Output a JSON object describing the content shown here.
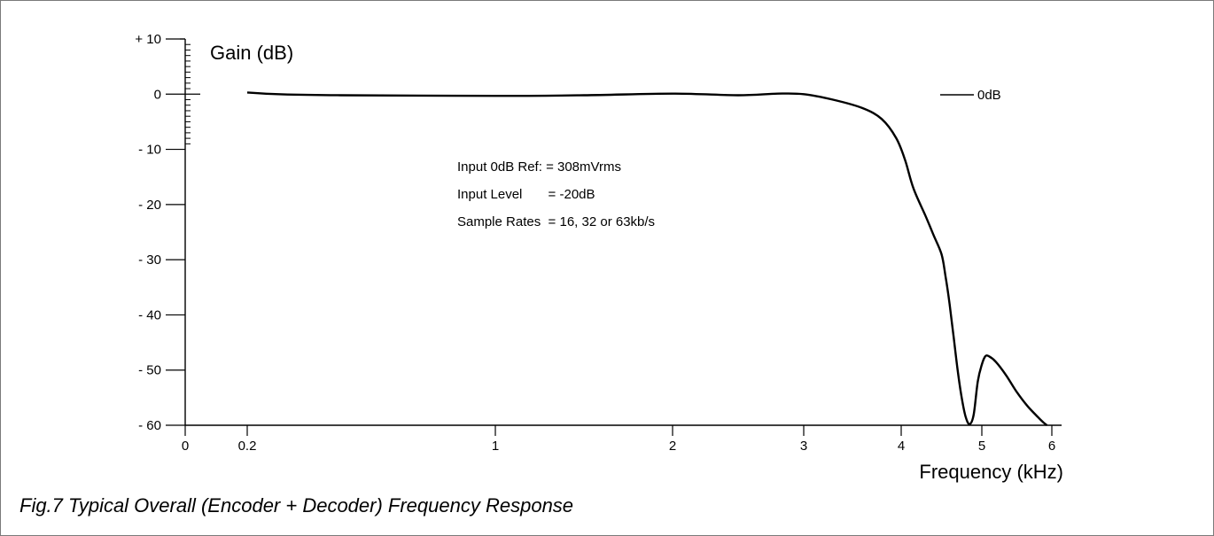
{
  "caption": "Fig.7 Typical Overall (Encoder + Decoder) Frequency Response",
  "chart_data": {
    "type": "line",
    "ylabel": "Gain (dB)",
    "xlabel": "Frequency (kHz)",
    "ylim": [
      -60,
      10
    ],
    "yticks": [
      10,
      0,
      -10,
      -20,
      -30,
      -40,
      -50,
      -60
    ],
    "ytick_labels": [
      "+ 10",
      "0",
      "- 10",
      "- 20",
      "- 30",
      "- 40",
      "- 50",
      "- 60"
    ],
    "xticks": [
      0,
      0.2,
      1,
      2,
      3,
      4,
      5,
      6
    ],
    "xtick_labels": [
      "0",
      "0.2",
      "1",
      "2",
      "3",
      "4",
      "5",
      "6"
    ],
    "legend_position": "top-right",
    "grid": false,
    "annotations": [
      "Input 0dB Ref: = 308mVrms",
      "Input Level       = -20dB",
      "Sample Rates  = 16, 32 or 63kb/s"
    ],
    "series": [
      {
        "name": "0dB",
        "color": "#000000",
        "x": [
          0.2,
          0.3,
          0.5,
          1.0,
          1.5,
          2.0,
          2.5,
          2.8,
          3.0,
          3.3,
          3.6,
          3.8,
          3.95,
          4.05,
          4.15,
          4.3,
          4.4,
          4.5,
          4.55,
          4.6,
          4.65,
          4.7,
          4.75,
          4.8,
          4.85,
          4.9,
          4.95,
          5.0,
          5.05,
          5.1,
          5.2,
          5.35,
          5.5,
          5.65,
          5.8,
          5.88,
          5.93
        ],
        "y": [
          0.3,
          0,
          -0.2,
          -0.3,
          -0.2,
          0.1,
          -0.2,
          0.1,
          0,
          -1,
          -2.5,
          -4.5,
          -8,
          -12,
          -17,
          -22,
          -25.5,
          -29,
          -33,
          -38,
          -44,
          -50,
          -55,
          -58.5,
          -59.8,
          -58,
          -52,
          -49,
          -47.5,
          -47.5,
          -48.5,
          -51,
          -54,
          -56.5,
          -58.5,
          -59.5,
          -60
        ]
      }
    ]
  }
}
